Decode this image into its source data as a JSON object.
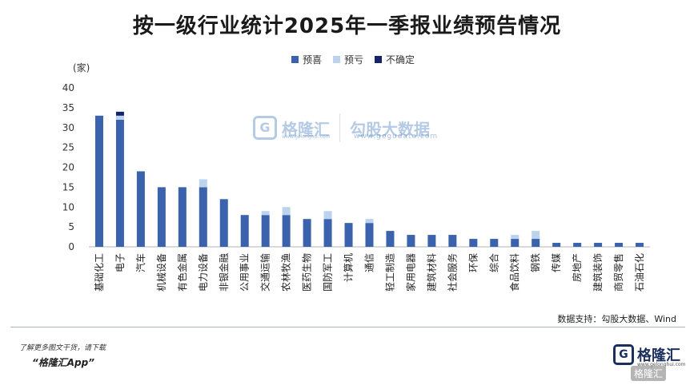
{
  "title": "按一级行业统计2025年一季报业绩预告情况",
  "unit_label": "(家)",
  "colors": {
    "预喜": "#3a62ad",
    "预亏": "#bcd3ee",
    "不确定": "#13246b"
  },
  "legend": [
    "预喜",
    "预亏",
    "不确定"
  ],
  "watermark": {
    "brand": "格隆汇",
    "brand_url": "www.gelonghui.com",
    "partner": "勾股大数据",
    "partner_url": "www.gogudata.com"
  },
  "source": "数据支持：勾股大数据、Wind",
  "promo_line1": "了解更多图文干货，请下载",
  "promo_line2": "“格隆汇App”",
  "brand_logo_text": "格隆汇",
  "brand_logo_url": "www.gelonghui.com",
  "corner_badge": "格隆汇",
  "chart_data": {
    "type": "bar",
    "stacked": true,
    "title": "按一级行业统计2025年一季报业绩预告情况",
    "ylabel": "(家)",
    "ylim": [
      0,
      40
    ],
    "yticks": [
      0,
      5,
      10,
      15,
      20,
      25,
      30,
      35,
      40
    ],
    "legend_position": "top-center",
    "grid": false,
    "categories": [
      "基础化工",
      "电子",
      "汽车",
      "机械设备",
      "有色金属",
      "电力设备",
      "非银金融",
      "公用事业",
      "交通运输",
      "农林牧渔",
      "医药生物",
      "国防军工",
      "计算机",
      "通信",
      "轻工制造",
      "家用电器",
      "建筑材料",
      "社会服务",
      "环保",
      "综合",
      "食品饮料",
      "钢铁",
      "传媒",
      "房地产",
      "建筑装饰",
      "商贸零售",
      "石油石化"
    ],
    "series": [
      {
        "name": "预喜",
        "values": [
          33,
          32,
          19,
          15,
          15,
          15,
          12,
          8,
          8,
          8,
          7,
          7,
          6,
          6,
          4,
          3,
          3,
          3,
          2,
          2,
          2,
          2,
          1,
          1,
          1,
          1,
          1
        ]
      },
      {
        "name": "预亏",
        "values": [
          0,
          1,
          0,
          0,
          0,
          2,
          0,
          0,
          1,
          2,
          0,
          2,
          0,
          1,
          0,
          0,
          0,
          0,
          0,
          0,
          1,
          2,
          0,
          0,
          0,
          0,
          0
        ]
      },
      {
        "name": "不确定",
        "values": [
          0,
          1,
          0,
          0,
          0,
          0,
          0,
          0,
          0,
          0,
          0,
          0,
          0,
          0,
          0,
          0,
          0,
          0,
          0,
          0,
          0,
          0,
          0,
          0,
          0,
          0,
          0
        ]
      }
    ]
  }
}
